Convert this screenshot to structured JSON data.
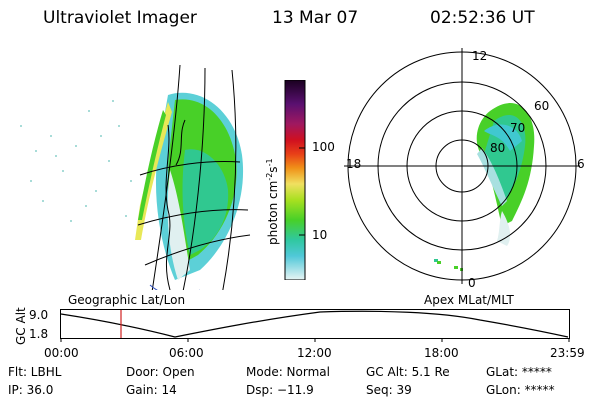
{
  "header": {
    "instrument": "Ultraviolet Imager",
    "date": "13 Mar 07",
    "time": "02:52:36 UT"
  },
  "colorbar": {
    "unit": "photon cm",
    "unit_exp": "-2",
    "unit_s": "s",
    "unit_s_exp": "-1",
    "tick_100": "100",
    "tick_10": "10",
    "colors": [
      "#2a0030",
      "#5a1070",
      "#9a1060",
      "#c81028",
      "#e83018",
      "#f08018",
      "#f8c010",
      "#e8e858",
      "#a8e020",
      "#48d028",
      "#30c890",
      "#40c8d0",
      "#a8e0e0",
      "#e0f0f0"
    ]
  },
  "polar": {
    "mlt_12": "12",
    "mlt_18": "18",
    "mlt_6": "6",
    "mlt_0": "0",
    "lat_60": "60",
    "lat_70": "70",
    "lat_80": "80"
  },
  "timeline": {
    "left_title": "Geographic Lat/Lon",
    "right_title": "Apex MLat/MLT",
    "axis_label": "GC Alt",
    "y_max": "9.0",
    "y_min": "1.8",
    "x_ticks": [
      "00:00",
      "06:00",
      "12:00",
      "18:00",
      "23:59"
    ],
    "marker_color": "#d02020"
  },
  "footer": {
    "flt": "Flt: LBHL",
    "ip": "IP: 36.0",
    "door": "Door: Open",
    "gain": "Gain: 14",
    "mode": "Mode: Normal",
    "dsp": "Dsp: −11.9",
    "gc_alt": "GC Alt: 5.1 Re",
    "seq": "Seq: 39",
    "glat": "GLat: *****",
    "glon": "GLon: *****"
  }
}
